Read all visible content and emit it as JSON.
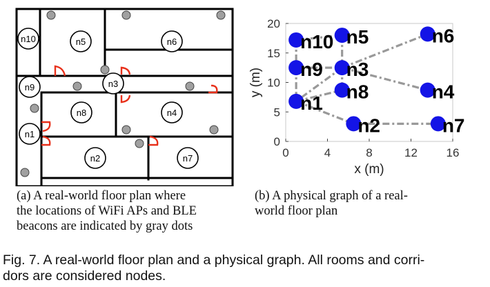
{
  "floor_plan": {
    "rooms": [
      "n10",
      "n5",
      "n6",
      "n9",
      "n3",
      "n8",
      "n4",
      "n1",
      "n2",
      "n7"
    ]
  },
  "chart_data": {
    "type": "scatter",
    "title": "",
    "xlabel": "x (m)",
    "ylabel": "y (m)",
    "xlim": [
      0,
      16
    ],
    "ylim": [
      0,
      20
    ],
    "xticks": [
      "0",
      "4",
      "8",
      "12",
      "16"
    ],
    "yticks": [
      "0",
      "5",
      "10",
      "15",
      "20"
    ],
    "nodes": [
      {
        "name": "n10",
        "x": 1.0,
        "y": 17.2
      },
      {
        "name": "n5",
        "x": 5.4,
        "y": 18.0
      },
      {
        "name": "n6",
        "x": 13.6,
        "y": 18.2
      },
      {
        "name": "n9",
        "x": 1.0,
        "y": 12.5
      },
      {
        "name": "n3",
        "x": 5.4,
        "y": 12.5
      },
      {
        "name": "n8",
        "x": 5.4,
        "y": 8.7
      },
      {
        "name": "n4",
        "x": 13.6,
        "y": 8.7
      },
      {
        "name": "n1",
        "x": 1.0,
        "y": 6.8
      },
      {
        "name": "n2",
        "x": 6.5,
        "y": 3.0
      },
      {
        "name": "n7",
        "x": 14.6,
        "y": 3.0
      }
    ],
    "edges": [
      [
        "n10",
        "n5"
      ],
      [
        "n10",
        "n9"
      ],
      [
        "n9",
        "n1"
      ],
      [
        "n9",
        "n3"
      ],
      [
        "n5",
        "n3"
      ],
      [
        "n3",
        "n6"
      ],
      [
        "n3",
        "n8"
      ],
      [
        "n3",
        "n4"
      ],
      [
        "n3",
        "n1"
      ],
      [
        "n1",
        "n8"
      ],
      [
        "n1",
        "n2"
      ],
      [
        "n2",
        "n7"
      ]
    ]
  },
  "captions": {
    "a_lines": [
      "(a) A real-world floor plan where",
      "the locations of WiFi APs and BLE",
      "beacons are indicated by gray dots"
    ],
    "b_lines": [
      "(b) A physical graph of a real-",
      "world floor plan"
    ]
  },
  "figure_caption_lines": [
    "Fig. 7. A real-world floor plan and a physical graph. All rooms and corri-",
    "dors are considered nodes."
  ],
  "colors": {
    "node": "#1414e6",
    "edge": "#999999",
    "door": "#e8301a",
    "device": "#a0a0a0",
    "wall": "#000000"
  }
}
